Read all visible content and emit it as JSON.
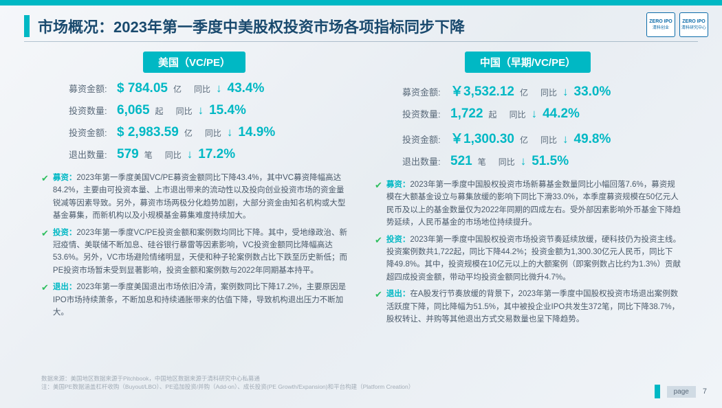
{
  "colors": {
    "accent": "#00b8c4",
    "heading": "#1a4a6e",
    "body": "#4a5a6a",
    "check": "#2fbf5f"
  },
  "title": "市场概况：2023年第一季度中美股权投资市场各项指标同步下降",
  "logo_brand": "ZERO IPO",
  "left": {
    "header": "美国（VC/PE）",
    "metrics": [
      {
        "label": "募资金额:",
        "value": "$ 784.05",
        "unit": "亿",
        "yoy": "同比",
        "pct": "43.4%"
      },
      {
        "label": "投资数量:",
        "value": "6,065",
        "unit": "起",
        "yoy": "同比",
        "pct": "15.4%"
      },
      {
        "label": "投资金额:",
        "value": "$ 2,983.59",
        "unit": "亿",
        "yoy": "同比",
        "pct": "14.9%"
      },
      {
        "label": "退出数量:",
        "value": "579",
        "unit": "笔",
        "yoy": "同比",
        "pct": "17.2%"
      }
    ],
    "bullets": [
      {
        "cat": "募资：",
        "text": "2023年第一季度美国VC/PE募资金额同比下降43.4%，其中VC募资降幅高达84.2%，主要由可投资本量、上市退出带来的流动性以及投向创业投资市场的资金量锐减等因素导致。另外，募资市场两极分化趋势加剧，大部分资金由知名机构或大型基金募集，而新机构以及小规模基金募集难度持续加大。"
      },
      {
        "cat": "投资：",
        "text": "2023年第一季度VC/PE投资金额和案例数均同比下降。其中，受地缘政治、新冠疫情、美联储不断加息、硅谷银行暴雷等因素影响，VC投资金额同比降幅高达53.6%。另外，VC市场避险情绪明显，天使和种子轮案例数占比下跌至历史新低；而PE投资市场暂未受到显著影响，投资金额和案例数与2022年同期基本持平。"
      },
      {
        "cat": "退出：",
        "text": "2023年第一季度美国退出市场依旧冷清，案例数同比下降17.2%，主要原因是IPO市场持续萧条，不断加息和持续通胀带来的估值下降，导致机构退出压力不断加大。"
      }
    ]
  },
  "right": {
    "header": "中国（早期/VC/PE）",
    "metrics": [
      {
        "label": "募资金额:",
        "value": "￥3,532.12",
        "unit": "亿",
        "yoy": "同比",
        "pct": "33.0%"
      },
      {
        "label": "投资数量:",
        "value": "1,722",
        "unit": "起",
        "yoy": "同比",
        "pct": "44.2%"
      },
      {
        "label": "投资金额:",
        "value": "￥1,300.30",
        "unit": "亿",
        "yoy": "同比",
        "pct": "49.8%"
      },
      {
        "label": "退出数量:",
        "value": "521",
        "unit": "笔",
        "yoy": "同比",
        "pct": "51.5%"
      }
    ],
    "bullets": [
      {
        "cat": "募资：",
        "text": "2023年第一季度中国股权投资市场新募基金数量同比小幅回落7.6%，募资规模在大额基金设立与募集放缓的影响下同比下滑33.0%，本季度募资规模在50亿元人民币及以上的基金数量仅为2022年同期的四成左右。受外部因素影响外币基金下降趋势延续，人民币基金的市场地位持续提升。"
      },
      {
        "cat": "投资：",
        "text": "2023年第一季度中国股权投资市场投资节奏延续放缓，硬科技仍为投资主线。投资案例数共1,722起，同比下降44.2%；投资金额为1,300.30亿元人民币，同比下降49.8%。其中，投资规模在10亿元以上的大额案例（即案例数占比约为1.3%）贡献超四成投资金额，带动平均投资金额同比微升4.7%。"
      },
      {
        "cat": "退出：",
        "text": "在A股发行节奏放缓的背景下，2023年第一季度中国股权投资市场退出案例数活跃度下降，同比降幅为51.5%，其中被投企业IPO共发生372笔，同比下降38.7%，股权转让、并购等其他退出方式交易数量也呈下降趋势。"
      }
    ]
  },
  "footnotes": [
    "数据来源：美国地区数据来源于Pitchbook，中国地区数据来源于清科研究中心私募通",
    "注：美国PE数据涵盖杠杆收购（Buyout/LBO）、PE追加投资/并购（Add-on）、成长投资(PE Growth/Expansion)和平台构建（Platform Creation）"
  ],
  "page_label": "page",
  "page_num": "7"
}
